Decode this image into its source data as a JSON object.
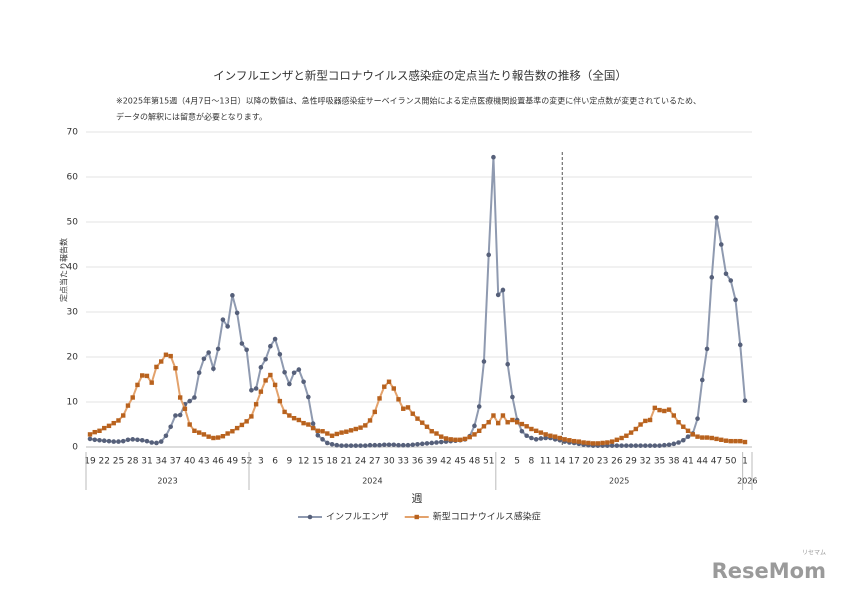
{
  "chart_data": {
    "type": "line",
    "title": "インフルエンザと新型コロナウイルス感染症の定点当たり報告数の推移（全国）",
    "notes": [
      "※2025年第15週（4月7日～13日）以降の数値は、急性呼吸器感染症サーベイランス開始による定点医療機関設置基準の変更に伴い定点数が変更されているため、",
      "データの解釈には留意が必要となります。"
    ],
    "y_label": "定点当たり報告数",
    "x_label": "週",
    "years": [
      "2023",
      "2024",
      "2025",
      "2026"
    ],
    "watermark": "ReseMom",
    "watermark_sub": "リセマム",
    "ylim": [
      0,
      70
    ],
    "yticks": [
      0,
      10,
      20,
      30,
      40,
      50,
      60,
      70
    ],
    "grid": true,
    "legend": "bottom",
    "categories": [
      "19",
      null,
      null,
      "22",
      null,
      null,
      "25",
      null,
      null,
      "28",
      null,
      null,
      "31",
      null,
      null,
      "34",
      null,
      null,
      "37",
      null,
      null,
      "40",
      null,
      null,
      "43",
      null,
      null,
      "46",
      null,
      null,
      "49",
      null,
      null,
      "52",
      null,
      null,
      "3",
      null,
      null,
      "6",
      null,
      null,
      "9",
      null,
      null,
      "12",
      null,
      null,
      "15",
      null,
      null,
      "18",
      null,
      null,
      "21",
      null,
      null,
      "24",
      null,
      null,
      "27",
      null,
      null,
      "30",
      null,
      null,
      "33",
      null,
      null,
      "36",
      null,
      null,
      "39",
      null,
      null,
      "42",
      null,
      null,
      "45",
      null,
      null,
      "48",
      null,
      null,
      "51",
      null,
      null,
      "2",
      null,
      null,
      "5",
      null,
      null,
      "8",
      null,
      null,
      "11",
      null,
      null,
      "14",
      null,
      null,
      "17",
      null,
      null,
      "20",
      null,
      null,
      "23",
      null,
      null,
      "26",
      null,
      null,
      "29",
      null,
      null,
      "32",
      null,
      null,
      "35",
      null,
      null,
      "38",
      null,
      null,
      "41",
      null,
      null,
      "44",
      null,
      null,
      "47",
      null,
      null,
      "50",
      null,
      null,
      "1"
    ],
    "series": [
      {
        "name": "インフルエンザ",
        "color": "#56607a",
        "line_color": "#8f9ab0",
        "marker": "circle",
        "values": [
          1.8,
          1.6,
          1.5,
          1.4,
          1.3,
          1.2,
          1.2,
          1.3,
          1.6,
          1.7,
          1.6,
          1.5,
          1.3,
          1.0,
          0.9,
          1.2,
          2.5,
          4.5,
          7.0,
          7.1,
          9.5,
          10.2,
          11.0,
          16.5,
          19.6,
          21.0,
          17.4,
          21.8,
          28.3,
          26.8,
          33.7,
          29.8,
          23.0,
          21.6,
          12.6,
          13.0,
          17.7,
          19.5,
          22.4,
          24.0,
          20.6,
          16.6,
          14.0,
          16.5,
          17.2,
          14.5,
          11.1,
          5.2,
          2.6,
          1.7,
          0.9,
          0.6,
          0.4,
          0.3,
          0.3,
          0.3,
          0.3,
          0.3,
          0.3,
          0.4,
          0.4,
          0.4,
          0.5,
          0.5,
          0.5,
          0.4,
          0.4,
          0.4,
          0.5,
          0.6,
          0.7,
          0.8,
          0.9,
          1.0,
          1.1,
          1.2,
          1.3,
          1.4,
          1.5,
          1.7,
          2.4,
          4.7,
          9.0,
          19.0,
          42.7,
          64.4,
          33.8,
          34.9,
          18.4,
          11.1,
          6.0,
          3.5,
          2.5,
          2.0,
          1.7,
          1.9,
          2.0,
          2.0,
          1.7,
          1.5,
          1.2,
          1.0,
          0.9,
          0.7,
          0.5,
          0.4,
          0.3,
          0.3,
          0.3,
          0.3,
          0.3,
          0.3,
          0.3,
          0.3,
          0.3,
          0.3,
          0.3,
          0.3,
          0.3,
          0.3,
          0.3,
          0.4,
          0.5,
          0.7,
          1.0,
          1.5,
          2.3,
          3.0,
          6.3,
          14.9,
          21.8,
          37.7,
          51.0,
          45.0,
          38.5,
          37.0,
          32.7,
          22.7,
          10.3
        ]
      },
      {
        "name": "新型コロナウイルス感染症",
        "color": "#b8621e",
        "line_color": "#e3a26c",
        "marker": "square",
        "values": [
          2.8,
          3.3,
          3.6,
          4.2,
          4.7,
          5.3,
          5.9,
          7.0,
          9.2,
          11.0,
          13.8,
          15.9,
          15.8,
          14.3,
          17.8,
          19.0,
          20.5,
          20.2,
          17.5,
          11.0,
          8.5,
          5.0,
          3.6,
          3.2,
          2.8,
          2.3,
          2.0,
          2.1,
          2.4,
          3.0,
          3.5,
          4.2,
          4.9,
          5.7,
          6.8,
          9.5,
          12.3,
          14.8,
          16.0,
          13.8,
          10.2,
          7.8,
          7.0,
          6.4,
          6.0,
          5.3,
          5.0,
          4.2,
          3.6,
          3.5,
          3.0,
          2.5,
          2.9,
          3.2,
          3.4,
          3.7,
          4.0,
          4.3,
          4.8,
          5.9,
          7.8,
          10.8,
          13.4,
          14.5,
          13.0,
          10.6,
          8.5,
          8.8,
          7.4,
          6.3,
          5.4,
          4.5,
          3.5,
          3.0,
          2.3,
          1.9,
          1.7,
          1.6,
          1.6,
          1.8,
          2.2,
          2.8,
          3.6,
          4.6,
          5.5,
          7.0,
          5.3,
          7.0,
          5.5,
          6.0,
          5.5,
          5.1,
          4.6,
          4.0,
          3.6,
          3.2,
          2.8,
          2.5,
          2.3,
          2.0,
          1.7,
          1.5,
          1.3,
          1.2,
          1.0,
          0.9,
          0.8,
          0.8,
          0.9,
          1.0,
          1.2,
          1.6,
          2.0,
          2.5,
          3.2,
          4.0,
          5.0,
          5.8,
          6.0,
          8.7,
          8.2,
          8.0,
          8.3,
          7.0,
          5.5,
          4.5,
          3.6,
          2.8,
          2.3,
          2.1,
          2.1,
          2.0,
          1.8,
          1.6,
          1.4,
          1.3,
          1.3,
          1.3,
          1.1
        ]
      }
    ]
  }
}
